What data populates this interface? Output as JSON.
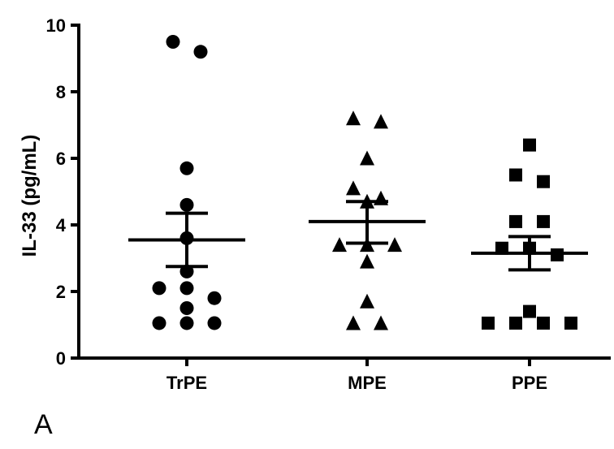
{
  "panel_label": "A",
  "chart_data": {
    "type": "scatter",
    "title": "",
    "xlabel": "",
    "ylabel": "IL-33 (pg/mL)",
    "ylim": [
      0,
      10
    ],
    "yticks": [
      "0",
      "2",
      "4",
      "6",
      "8",
      "10"
    ],
    "categories": [
      "TrPE",
      "MPE",
      "PPE"
    ],
    "grid": false,
    "series": [
      {
        "category": "TrPE",
        "marker": "circle",
        "values": [
          9.5,
          9.2,
          5.7,
          4.6,
          3.6,
          2.6,
          2.1,
          2.1,
          1.8,
          1.5,
          1.05,
          1.05,
          1.05
        ],
        "mean": 3.55,
        "sem_upper": 4.35,
        "sem_lower": 2.75
      },
      {
        "category": "MPE",
        "marker": "triangle",
        "values": [
          7.2,
          7.1,
          6.0,
          5.1,
          4.8,
          4.7,
          3.4,
          3.4,
          3.4,
          2.9,
          1.7,
          1.05,
          1.05
        ],
        "mean": 4.1,
        "sem_upper": 4.7,
        "sem_lower": 3.45
      },
      {
        "category": "PPE",
        "marker": "square",
        "values": [
          6.4,
          5.5,
          5.3,
          4.1,
          4.1,
          3.3,
          3.3,
          3.1,
          1.4,
          1.05,
          1.05,
          1.05,
          1.05
        ],
        "mean": 3.15,
        "sem_upper": 3.65,
        "sem_lower": 2.65
      }
    ]
  }
}
